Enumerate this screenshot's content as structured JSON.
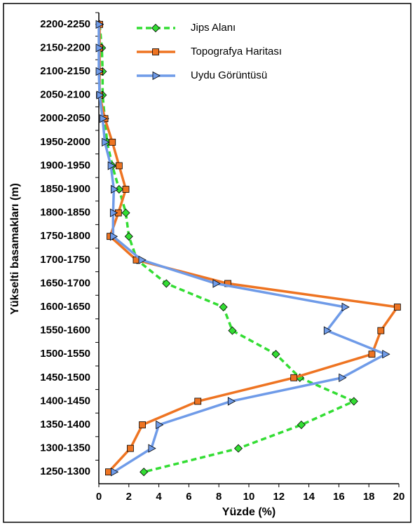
{
  "chart_data": {
    "type": "line",
    "xlabel": "Yüzde (%)",
    "ylabel": "Yükselti basamakları (m)",
    "categories": [
      "2200-2250",
      "2150-2200",
      "2100-2150",
      "2050-2100",
      "2000-2050",
      "1950-2000",
      "1900-1950",
      "1850-1900",
      "1800-1850",
      "1750-1800",
      "1700-1750",
      "1650-1700",
      "1600-1650",
      "1550-1600",
      "1500-1550",
      "1450-1500",
      "1400-1450",
      "1350-1400",
      "1300-1350",
      "1250-1300"
    ],
    "series": [
      {
        "name": "Jips Alanı",
        "color": "#33dd33",
        "marker": "diamond",
        "dashed": true,
        "values": [
          0.05,
          0.2,
          0.25,
          0.25,
          0.4,
          0.55,
          0.9,
          1.35,
          1.8,
          2.0,
          2.55,
          4.5,
          8.3,
          8.9,
          11.8,
          13.4,
          17.0,
          13.5,
          9.3,
          3.0
        ]
      },
      {
        "name": "Topografya Haritası",
        "color": "#ee7422",
        "marker": "square",
        "dashed": false,
        "values": [
          0.05,
          0.05,
          0.05,
          0.05,
          0.4,
          0.9,
          1.35,
          1.8,
          1.3,
          0.75,
          2.5,
          8.6,
          19.9,
          18.8,
          18.2,
          13.0,
          6.6,
          2.9,
          2.1,
          0.65
        ]
      },
      {
        "name": "Uydu Görüntüsü",
        "color": "#6f9be8",
        "marker": "triangle",
        "dashed": false,
        "values": [
          0,
          0,
          0,
          0.05,
          0.25,
          0.4,
          0.8,
          1.0,
          0.95,
          0.95,
          2.85,
          7.8,
          16.4,
          15.2,
          19.1,
          16.2,
          8.8,
          4.0,
          3.5,
          1.0
        ]
      }
    ],
    "xlim": [
      0,
      20
    ],
    "xticks": [
      0,
      2,
      4,
      6,
      8,
      10,
      12,
      14,
      16,
      18,
      20
    ]
  }
}
